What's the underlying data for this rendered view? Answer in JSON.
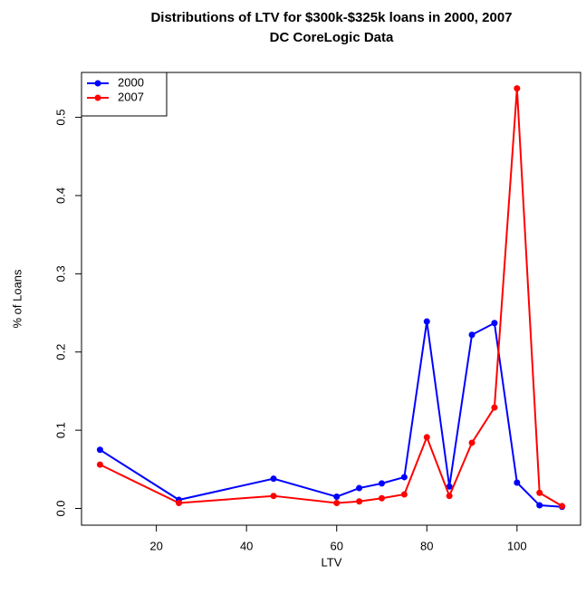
{
  "chart_data": {
    "type": "line",
    "title": [
      "Distributions of LTV for $300k-$325k loans in 2000, 2007",
      "DC CoreLogic Data"
    ],
    "x_label": "LTV",
    "y_label": "% of Loans",
    "x": [
      7.5,
      25,
      46,
      60,
      65,
      70,
      75,
      80,
      85,
      90,
      95,
      100,
      105,
      110
    ],
    "series": [
      {
        "name": "2000",
        "color": "#0000ff",
        "values": [
          0.075,
          0.011,
          0.038,
          0.015,
          0.026,
          0.032,
          0.04,
          0.239,
          0.028,
          0.222,
          0.237,
          0.033,
          0.004,
          0.002
        ]
      },
      {
        "name": "2007",
        "color": "#ff0000",
        "values": [
          0.056,
          0.007,
          0.016,
          0.007,
          0.009,
          0.013,
          0.018,
          0.091,
          0.016,
          0.084,
          0.129,
          0.537,
          0.02,
          0.003
        ]
      }
    ],
    "xlim": [
      3.4,
      114.1
    ],
    "xticks": [
      20,
      40,
      60,
      80,
      100
    ],
    "ylim": [
      -0.0214,
      0.5574
    ],
    "yticks": [
      {
        "value": 0,
        "label": "0.0"
      },
      0.1,
      0.2,
      0.3,
      0.4,
      0.5
    ],
    "legend": "top-left",
    "grid": false
  }
}
